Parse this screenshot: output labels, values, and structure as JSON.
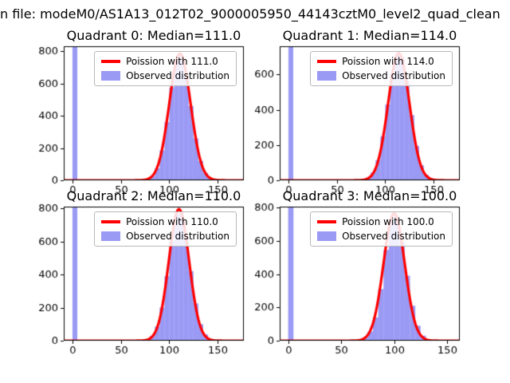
{
  "figure": {
    "title": "n file: modeM0/AS1A13_012T02_9000005950_44143cztM0_level2_quad_clean",
    "background": "#ffffff"
  },
  "colors": {
    "bar": "rgba(62,62,235,0.52)",
    "curve": "#ff0000",
    "axis": "#000000",
    "tick_label": "#000000"
  },
  "chart_data": [
    {
      "type": "histogram",
      "title": "Quadrant 0: Median=111.0",
      "median": 111.0,
      "legend": {
        "line_label": "Poission with 111.0",
        "patch_label": "Observed distribution"
      },
      "xlim": [
        -9,
        177
      ],
      "ylim": [
        0,
        830
      ],
      "xticks": [
        0,
        50,
        100,
        150
      ],
      "yticks": [
        0,
        200,
        400,
        600,
        800
      ],
      "bin_start": 0,
      "bin_width": 5,
      "bin_values": [
        8000,
        0,
        0,
        0,
        0,
        0,
        0,
        0,
        0,
        0,
        0,
        0,
        0,
        0,
        2,
        8,
        25,
        75,
        185,
        360,
        575,
        745,
        780,
        660,
        460,
        260,
        120,
        45,
        15,
        5,
        2,
        0,
        0,
        0,
        0
      ],
      "curve": {
        "mu": 111,
        "sigma": 11,
        "amp": 785
      }
    },
    {
      "type": "histogram",
      "title": "Quadrant 1: Median=114.0",
      "median": 114.0,
      "legend": {
        "line_label": "Poission with 114.0",
        "patch_label": "Observed distribution"
      },
      "xlim": [
        -9,
        177
      ],
      "ylim": [
        0,
        760
      ],
      "xticks": [
        0,
        50,
        100,
        150
      ],
      "yticks": [
        0,
        200,
        400,
        600
      ],
      "bin_start": 0,
      "bin_width": 5,
      "bin_values": [
        8000,
        0,
        0,
        0,
        0,
        0,
        0,
        0,
        0,
        0,
        0,
        0,
        0,
        0,
        0,
        5,
        15,
        45,
        115,
        250,
        430,
        610,
        715,
        700,
        560,
        370,
        195,
        85,
        30,
        10,
        3,
        0,
        0,
        0,
        0
      ],
      "curve": {
        "mu": 114,
        "sigma": 11,
        "amp": 722
      }
    },
    {
      "type": "histogram",
      "title": "Quadrant 2: Median=110.0",
      "median": 110.0,
      "legend": {
        "line_label": "Poission with 110.0",
        "patch_label": "Observed distribution"
      },
      "xlim": [
        -9,
        177
      ],
      "ylim": [
        0,
        810
      ],
      "xticks": [
        0,
        50,
        100,
        150
      ],
      "yticks": [
        0,
        200,
        400,
        600,
        800
      ],
      "bin_start": 0,
      "bin_width": 5,
      "bin_values": [
        8000,
        0,
        0,
        0,
        0,
        0,
        0,
        0,
        0,
        0,
        0,
        0,
        0,
        0,
        3,
        10,
        30,
        85,
        200,
        390,
        600,
        765,
        770,
        620,
        420,
        225,
        100,
        38,
        12,
        4,
        1,
        0,
        0,
        0,
        0
      ],
      "curve": {
        "mu": 110,
        "sigma": 10.5,
        "amp": 795
      }
    },
    {
      "type": "histogram",
      "title": "Quadrant 3: Median=100.0",
      "median": 100.0,
      "legend": {
        "line_label": "Poission with 100.0",
        "patch_label": "Observed distribution"
      },
      "xlim": [
        -8,
        162
      ],
      "ylim": [
        0,
        805
      ],
      "xticks": [
        0,
        50,
        100,
        150
      ],
      "yticks": [
        0,
        200,
        400,
        600,
        800
      ],
      "bin_start": 0,
      "bin_width": 5,
      "bin_values": [
        8000,
        0,
        0,
        0,
        0,
        0,
        0,
        0,
        0,
        0,
        0,
        0,
        2,
        6,
        18,
        55,
        140,
        310,
        545,
        730,
        750,
        590,
        390,
        210,
        90,
        30,
        9,
        2,
        0,
        0,
        0,
        0,
        0,
        0,
        0
      ],
      "curve": {
        "mu": 100,
        "sigma": 10,
        "amp": 765
      }
    }
  ]
}
